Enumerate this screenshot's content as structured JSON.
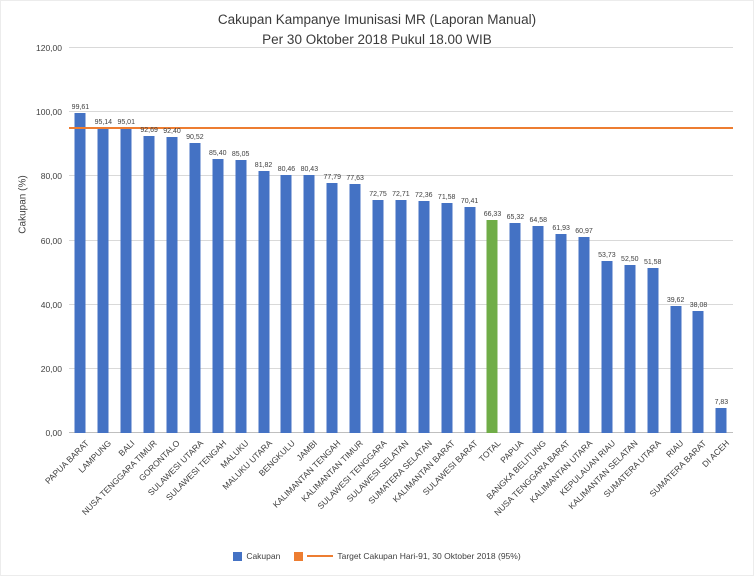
{
  "title": {
    "line1": "Cakupan Kampanye Imunisasi MR (Laporan Manual)",
    "line2": "Per 30 Oktober 2018 Pukul 18.00 WIB"
  },
  "y_axis": {
    "label": "Cakupan (%)"
  },
  "legend": {
    "cakupan_label": "Cakupan",
    "target_label": "Target Cakupan Hari-91, 30 Oktober 2018 (95%)"
  },
  "colors": {
    "bar": "#4472C4",
    "highlight_bar": "#70AD47",
    "target_line": "#ED7D31",
    "gridline": "#D9D9D9",
    "axis_line": "#BFBFBF",
    "text": "#404040",
    "background": "#FFFFFF"
  },
  "chart_data": {
    "type": "bar",
    "title": "Cakupan Kampanye Imunisasi MR (Laporan Manual) Per 30 Oktober 2018 Pukul 18.00 WIB",
    "xlabel": "",
    "ylabel": "Cakupan (%)",
    "ylim": [
      0,
      120
    ],
    "y_tick_step": 20,
    "grid": true,
    "legend_position": "bottom",
    "decimal_separator": ",",
    "categories": [
      "PAPUA BARAT",
      "LAMPUNG",
      "BALI",
      "NUSA TENGGARA TIMUR",
      "GORONTALO",
      "SULAWESI UTARA",
      "SULAWESI TENGAH",
      "MALUKU",
      "MALUKU UTARA",
      "BENGKULU",
      "JAMBI",
      "KALIMANTAN TENGAH",
      "KALIMANTAN TIMUR",
      "SULAWESI TENGGARA",
      "SULAWESI SELATAN",
      "SUMATERA SELATAN",
      "KALIMANTAN BARAT",
      "SULAWESI BARAT",
      "TOTAL",
      "PAPUA",
      "BANGKA BELITUNG",
      "NUSA TENGGARA BARAT",
      "KALIMANTAN UTARA",
      "KEPULAUAN RIAU",
      "KALIMANTAN SELATAN",
      "SUMATERA UTARA",
      "RIAU",
      "SUMATERA BARAT",
      "DI ACEH"
    ],
    "values": [
      99.61,
      95.14,
      95.01,
      92.69,
      92.4,
      90.52,
      85.4,
      85.05,
      81.82,
      80.46,
      80.43,
      77.79,
      77.63,
      72.75,
      72.71,
      72.36,
      71.58,
      70.41,
      66.33,
      65.32,
      64.58,
      61.93,
      60.97,
      53.73,
      52.5,
      51.58,
      39.62,
      38.08,
      7.83
    ],
    "highlight_category": "TOTAL",
    "target_line": {
      "value": 95,
      "label": "Target Cakupan Hari-91, 30 Oktober 2018 (95%)"
    }
  }
}
